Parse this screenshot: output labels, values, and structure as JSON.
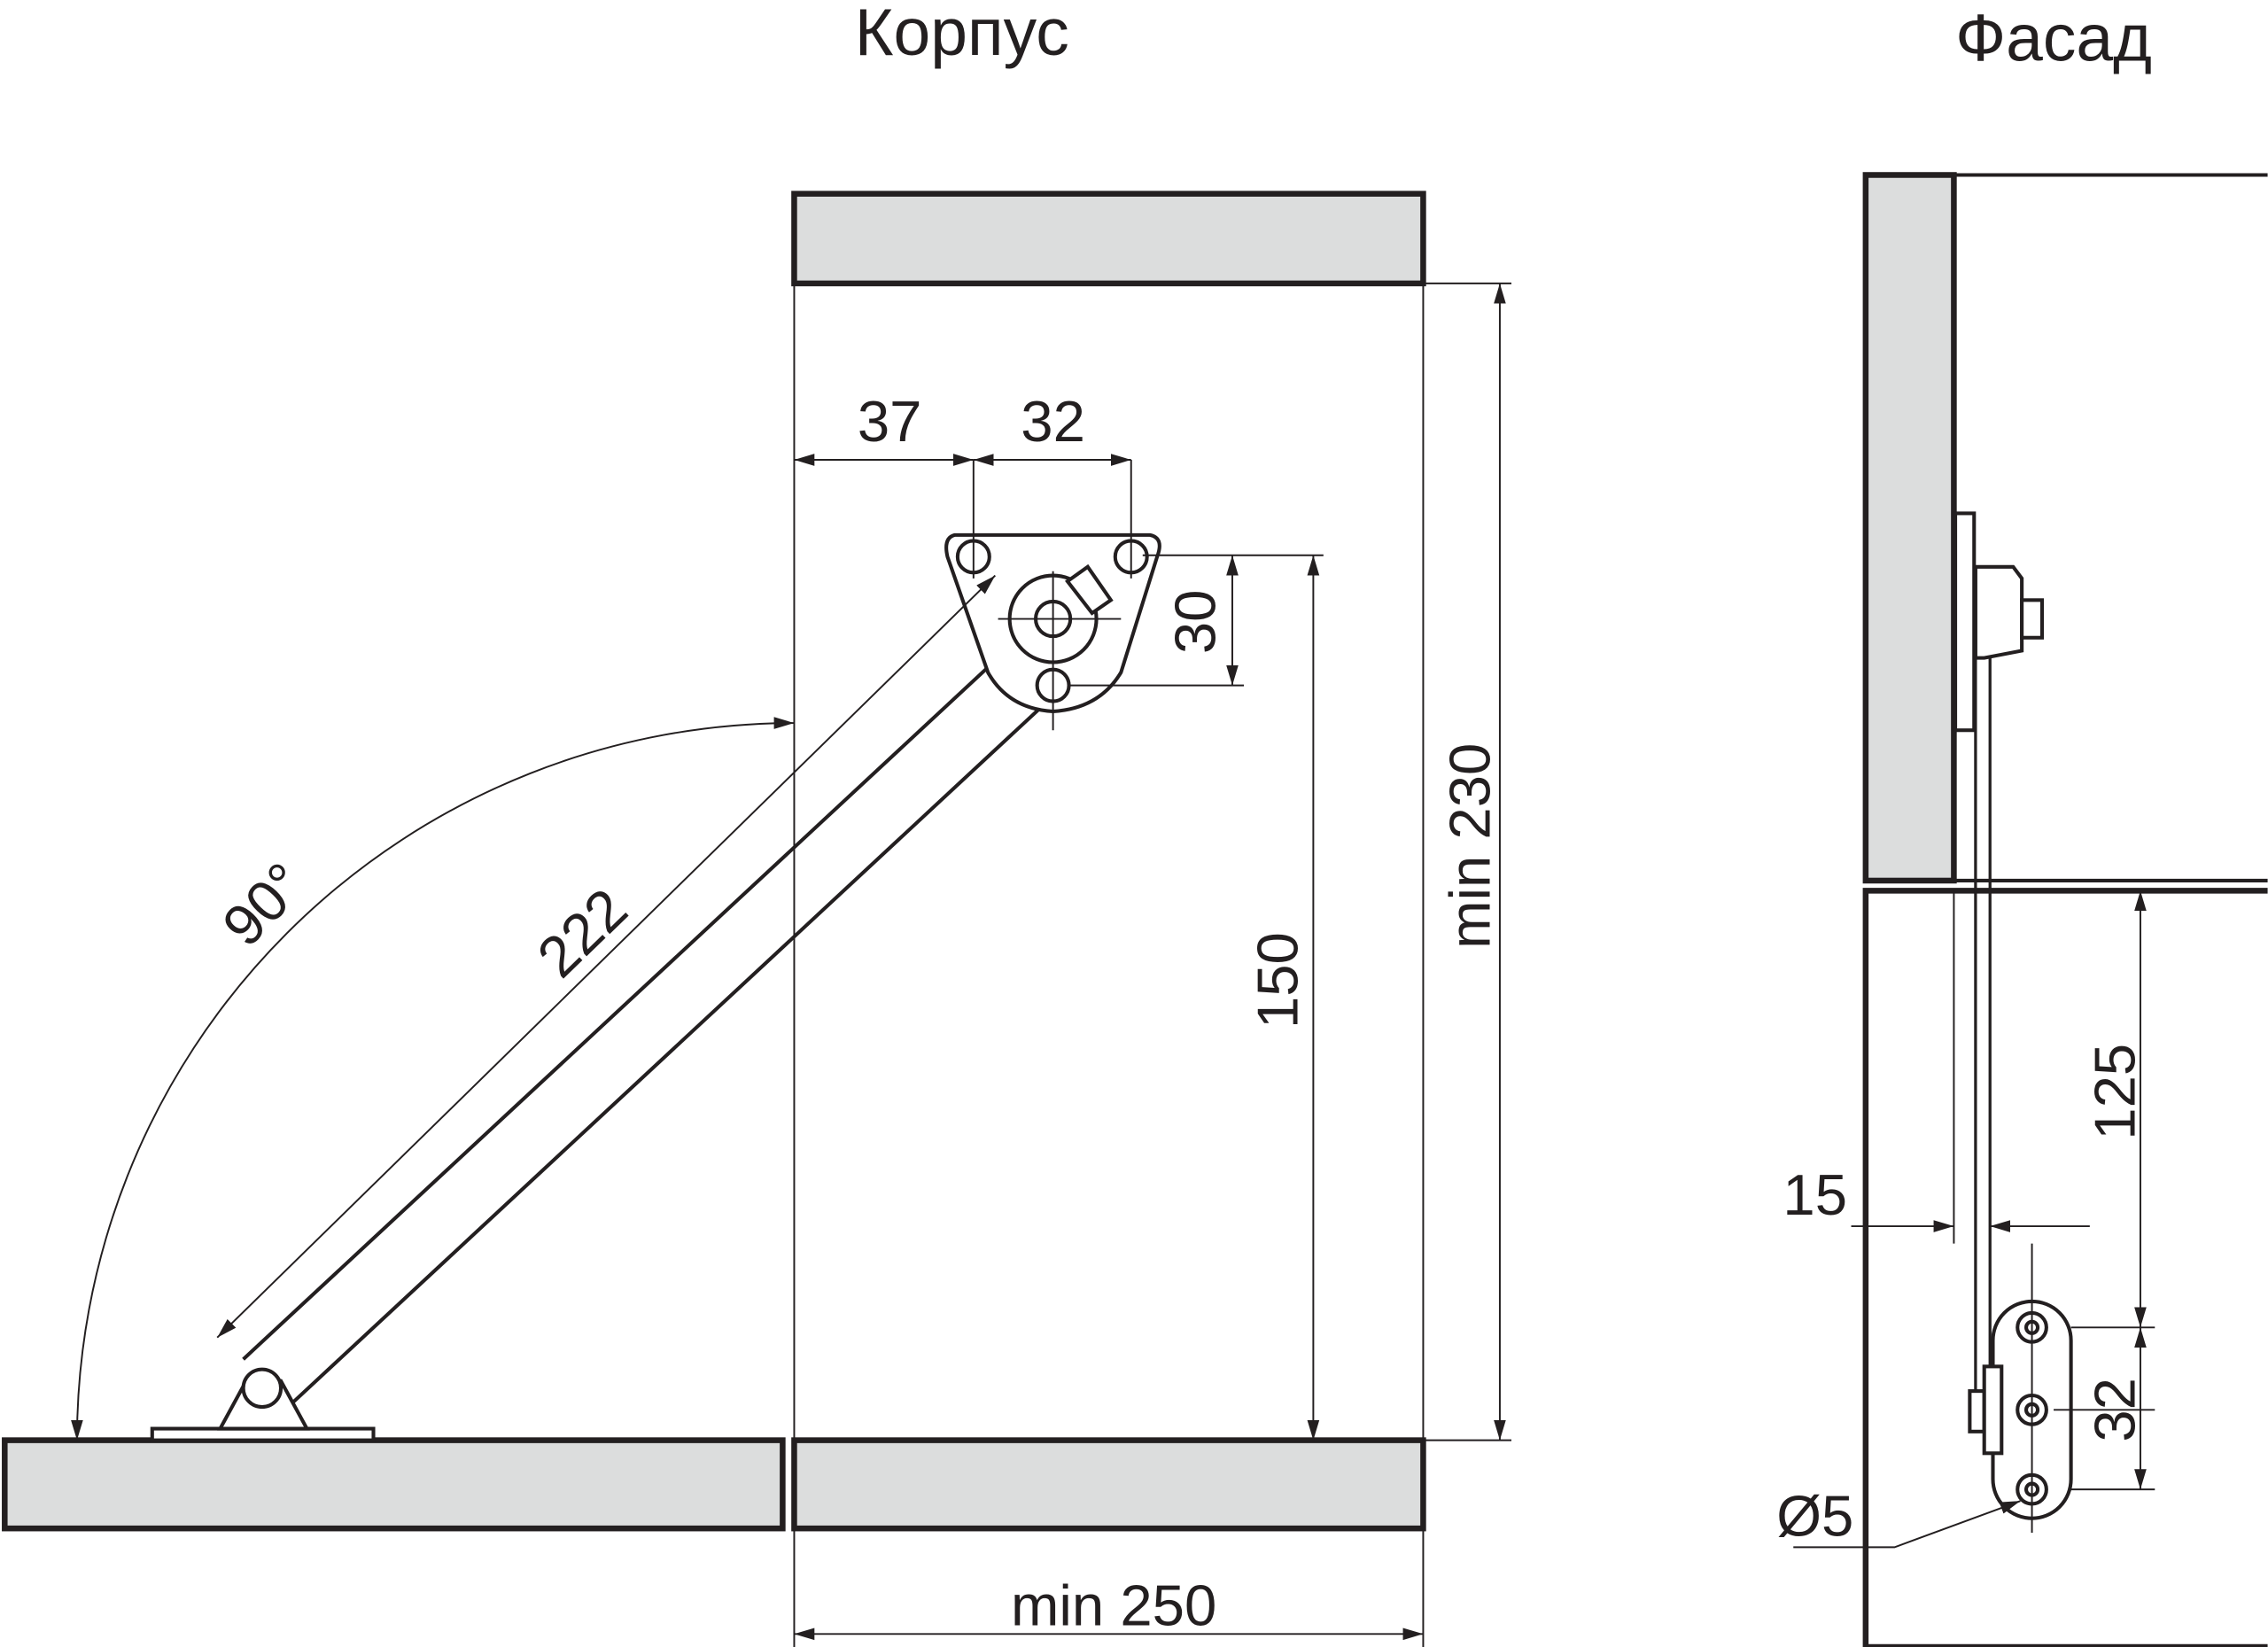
{
  "titles": {
    "body": "Корпус",
    "facade": "Фасад"
  },
  "body_dimensions": {
    "offset_37": "37",
    "spacing_32": "32",
    "height_30": "30",
    "height_150": "150",
    "min_height": "min 230",
    "arm_length": "222",
    "angle": "90°",
    "min_width": "min 250"
  },
  "facade_dimensions": {
    "offset_15": "15",
    "height_125": "125",
    "spacing_32": "32",
    "hole_diameter": "Ø5"
  }
}
